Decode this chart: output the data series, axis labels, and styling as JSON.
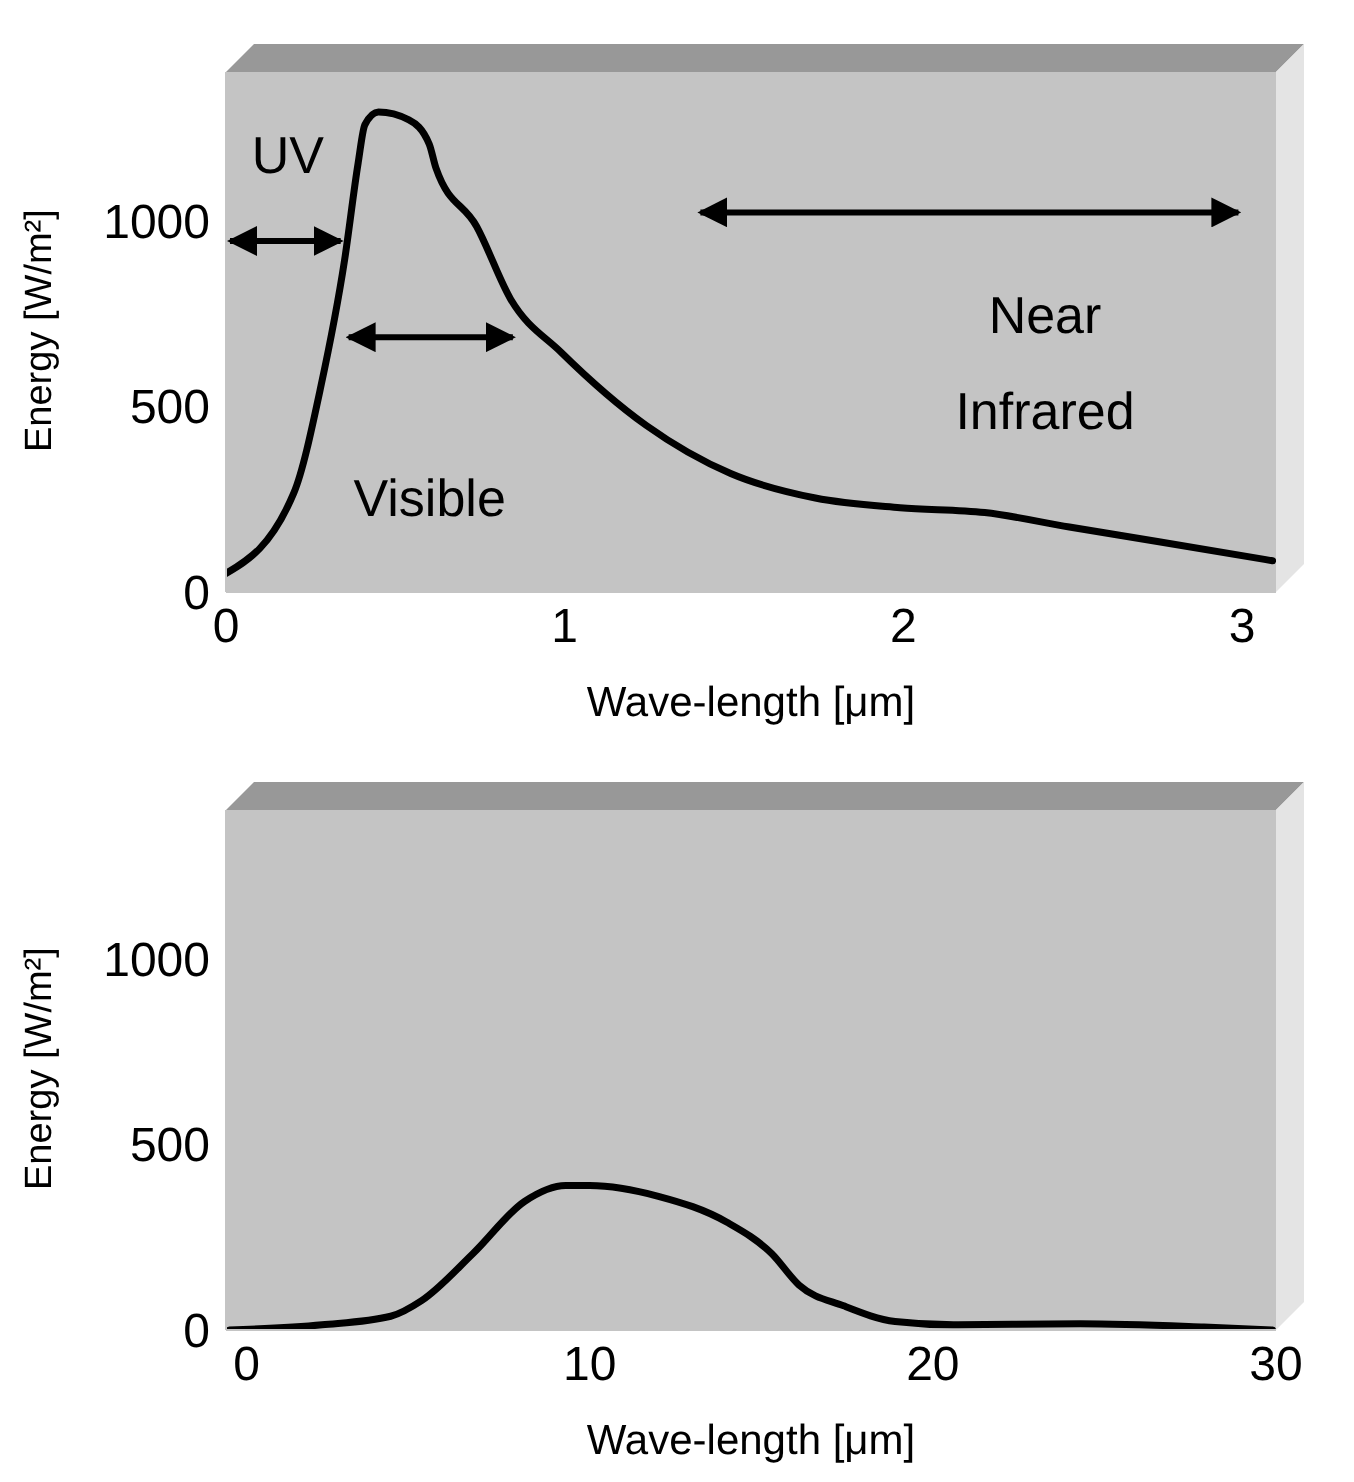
{
  "chart_data": [
    {
      "type": "line",
      "xlabel": "Wave-length [μm]",
      "ylabel": "Energy [W/m²]",
      "xlim": [
        0,
        3.1
      ],
      "ylim": [
        0,
        1400
      ],
      "xticks": [
        0,
        1,
        2,
        3
      ],
      "yticks": [
        0,
        500,
        1000
      ],
      "x": [
        0,
        0.2,
        0.28,
        0.35,
        0.39,
        0.41,
        0.45,
        0.54,
        0.6,
        0.62,
        0.74,
        0.84,
        0.99,
        1.24,
        1.49,
        1.74,
        1.99,
        2.24,
        2.49,
        2.75,
        3.09
      ],
      "series": [
        {
          "color": "#000000",
          "values": [
            50,
            266,
            553,
            893,
            1154,
            1258,
            1292,
            1271,
            1206,
            1141,
            984,
            789,
            645,
            449,
            319,
            253,
            227,
            214,
            175,
            136,
            84
          ]
        }
      ],
      "annotations": [
        "UV",
        "Visible",
        "Near\nInfrared"
      ]
    },
    {
      "type": "line",
      "xlabel": "Wave-length [μm]",
      "ylabel": "Energy [W/m²]",
      "xlim": [
        -0.6,
        30
      ],
      "ylim": [
        0,
        1400
      ],
      "xticks": [
        0,
        10,
        20,
        30
      ],
      "yticks": [
        0,
        500,
        1000
      ],
      "x": [
        -0.5,
        2.2,
        4.2,
        5.1,
        6.6,
        8.1,
        9.3,
        10,
        12,
        14,
        15.3,
        16.1,
        17.4,
        18.9,
        20.6,
        24.3,
        27.9,
        29.9
      ],
      "series": [
        {
          "color": "#000000",
          "values": [
            0,
            14,
            37,
            79,
            206,
            346,
            389,
            389,
            360,
            290,
            206,
            121,
            65,
            23,
            14,
            17,
            8,
            0
          ]
        }
      ]
    }
  ]
}
